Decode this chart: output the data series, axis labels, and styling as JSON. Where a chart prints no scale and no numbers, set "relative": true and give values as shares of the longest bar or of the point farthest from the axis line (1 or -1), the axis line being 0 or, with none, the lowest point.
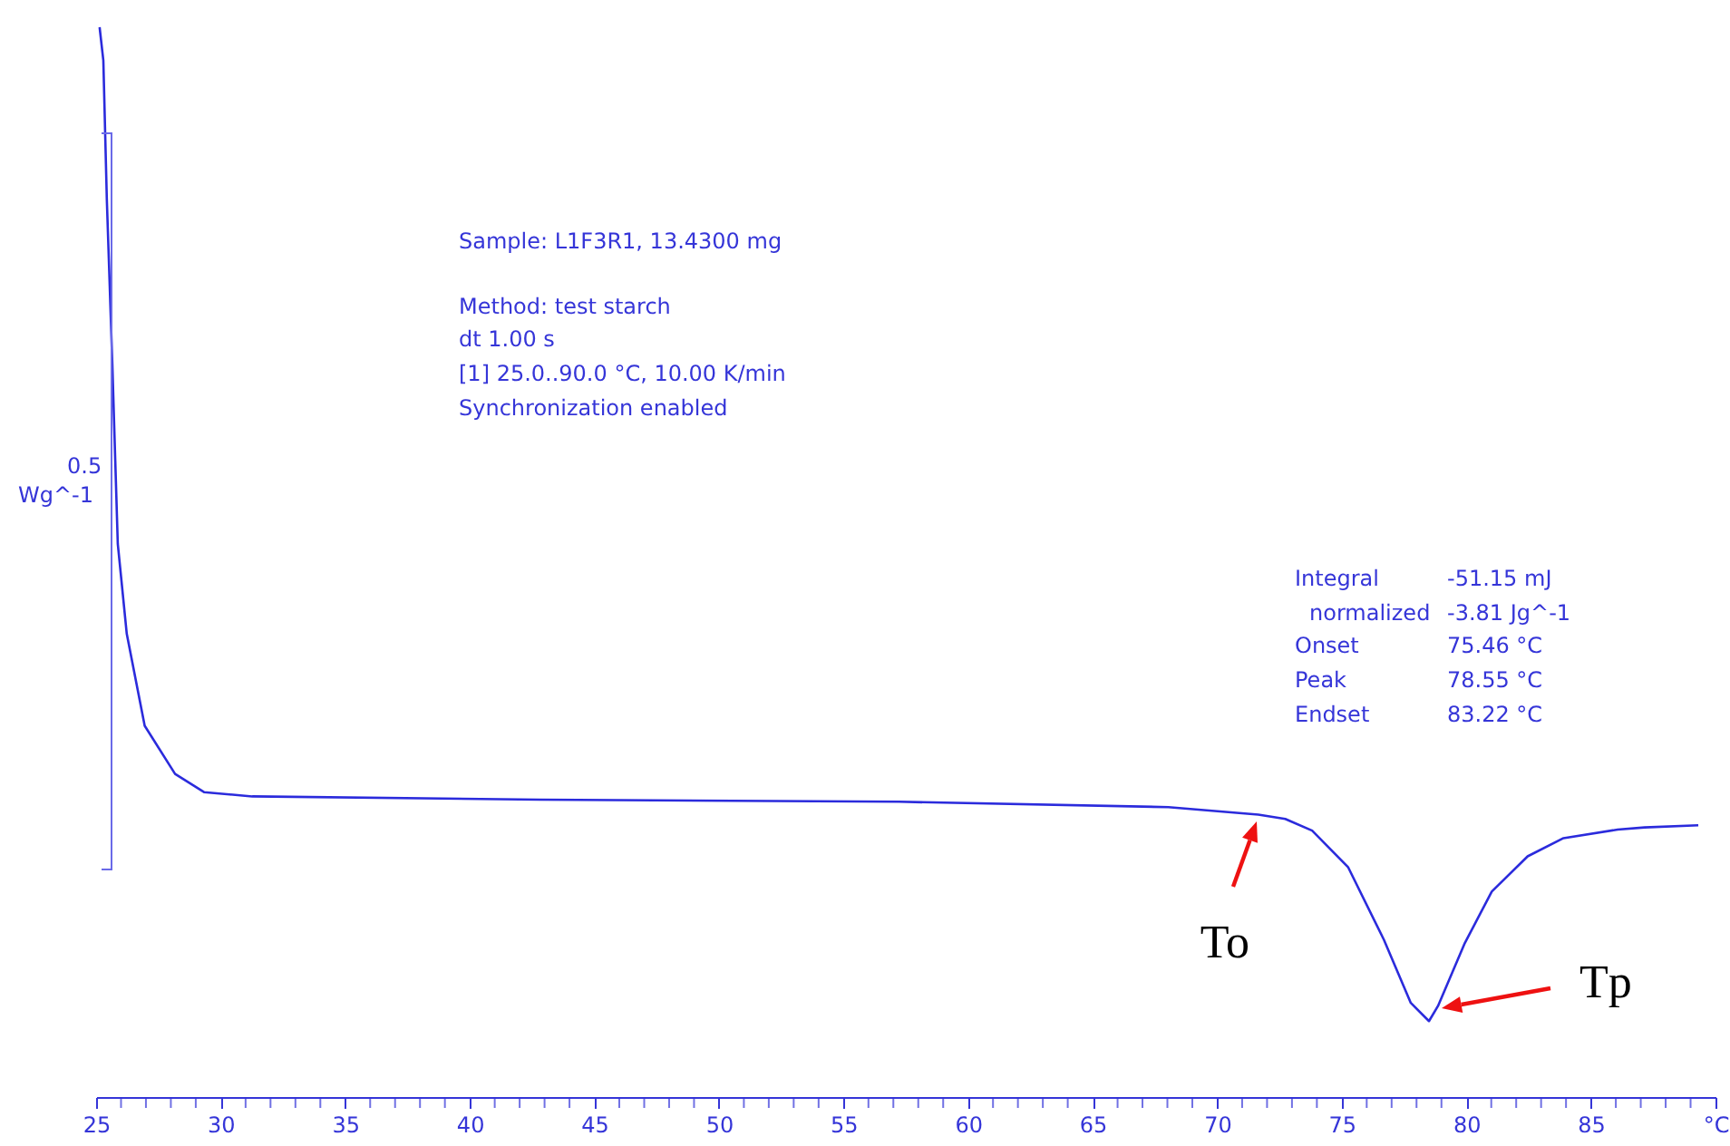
{
  "chart_data": {
    "type": "line",
    "relative": true,
    "grid": false,
    "marker": "none",
    "line_style": "solid",
    "xlim": [
      25,
      90
    ],
    "xticks": [
      25,
      {
        "value": 26,
        "label": null
      },
      {
        "value": 27,
        "label": null
      },
      {
        "value": 28,
        "label": null
      },
      {
        "value": 29,
        "label": null
      },
      30,
      {
        "value": 31,
        "label": null
      },
      {
        "value": 32,
        "label": null
      },
      {
        "value": 33,
        "label": null
      },
      {
        "value": 34,
        "label": null
      },
      35,
      {
        "value": 36,
        "label": null
      },
      {
        "value": 37,
        "label": null
      },
      {
        "value": 38,
        "label": null
      },
      {
        "value": 39,
        "label": null
      },
      40,
      {
        "value": 41,
        "label": null
      },
      {
        "value": 42,
        "label": null
      },
      {
        "value": 43,
        "label": null
      },
      {
        "value": 44,
        "label": null
      },
      45,
      {
        "value": 46,
        "label": null
      },
      {
        "value": 47,
        "label": null
      },
      {
        "value": 48,
        "label": null
      },
      {
        "value": 49,
        "label": null
      },
      50,
      {
        "value": 51,
        "label": null
      },
      {
        "value": 52,
        "label": null
      },
      {
        "value": 53,
        "label": null
      },
      {
        "value": 54,
        "label": null
      },
      55,
      {
        "value": 56,
        "label": null
      },
      {
        "value": 57,
        "label": null
      },
      {
        "value": 58,
        "label": null
      },
      {
        "value": 59,
        "label": null
      },
      60,
      {
        "value": 61,
        "label": null
      },
      {
        "value": 62,
        "label": null
      },
      {
        "value": 63,
        "label": null
      },
      {
        "value": 64,
        "label": null
      },
      65,
      {
        "value": 66,
        "label": null
      },
      {
        "value": 67,
        "label": null
      },
      {
        "value": 68,
        "label": null
      },
      {
        "value": 69,
        "label": null
      },
      70,
      {
        "value": 71,
        "label": null
      },
      {
        "value": 72,
        "label": null
      },
      {
        "value": 73,
        "label": null
      },
      {
        "value": 74,
        "label": null
      },
      75,
      {
        "value": 76,
        "label": null
      },
      {
        "value": 77,
        "label": null
      },
      {
        "value": 78,
        "label": null
      },
      {
        "value": 79,
        "label": null
      },
      80,
      {
        "value": 81,
        "label": null
      },
      {
        "value": 82,
        "label": null
      },
      {
        "value": 83,
        "label": null
      },
      {
        "value": 84,
        "label": null
      },
      85,
      {
        "value": 86,
        "label": null
      },
      {
        "value": 87,
        "label": null
      },
      {
        "value": 88,
        "label": null
      },
      {
        "value": 89,
        "label": null
      },
      {
        "value": 90,
        "label": "°C"
      }
    ],
    "x": [
      25.14,
      25.29,
      25.43,
      25.65,
      25.87,
      26.23,
      26.95,
      28.17,
      29.33,
      31.27,
      42.81,
      57.23,
      68.04,
      71.65,
      72.73,
      73.81,
      75.25,
      76.69,
      77.77,
      78.5,
      78.86,
      79.94,
      81.02,
      82.46,
      83.9,
      86.07,
      87.15,
      89.31
    ],
    "series": [
      {
        "color": "#2b2bdc",
        "values": [
          1,
          0.969,
          0.839,
          0.686,
          0.517,
          0.433,
          0.347,
          0.302,
          0.285,
          0.281,
          0.278,
          0.276,
          0.271,
          0.264,
          0.26,
          0.249,
          0.215,
          0.147,
          0.088,
          0.071,
          0.085,
          0.144,
          0.192,
          0.225,
          0.242,
          0.25,
          0.252,
          0.254
        ]
      }
    ],
    "annotations": [
      "Sample: L1F3R1, 13.4300 mg",
      "Method: test starch",
      "dt 1.00 s",
      "[1] 25.0..90.0 °C, 10.00 K/min",
      "Synchronization enabled",
      "0.5",
      "Wg^-1",
      "Integral",
      "-51.15 mJ",
      "normalized",
      "-3.81 Jg^-1",
      "Onset",
      "75.46 °C",
      "Peak",
      "78.55 °C",
      "Endset",
      "83.22 °C",
      {
        "text": "To",
        "x": 71.65,
        "y": 0.264
      },
      {
        "text": "Tp",
        "x": 78.86,
        "y": 0.085
      }
    ]
  }
}
